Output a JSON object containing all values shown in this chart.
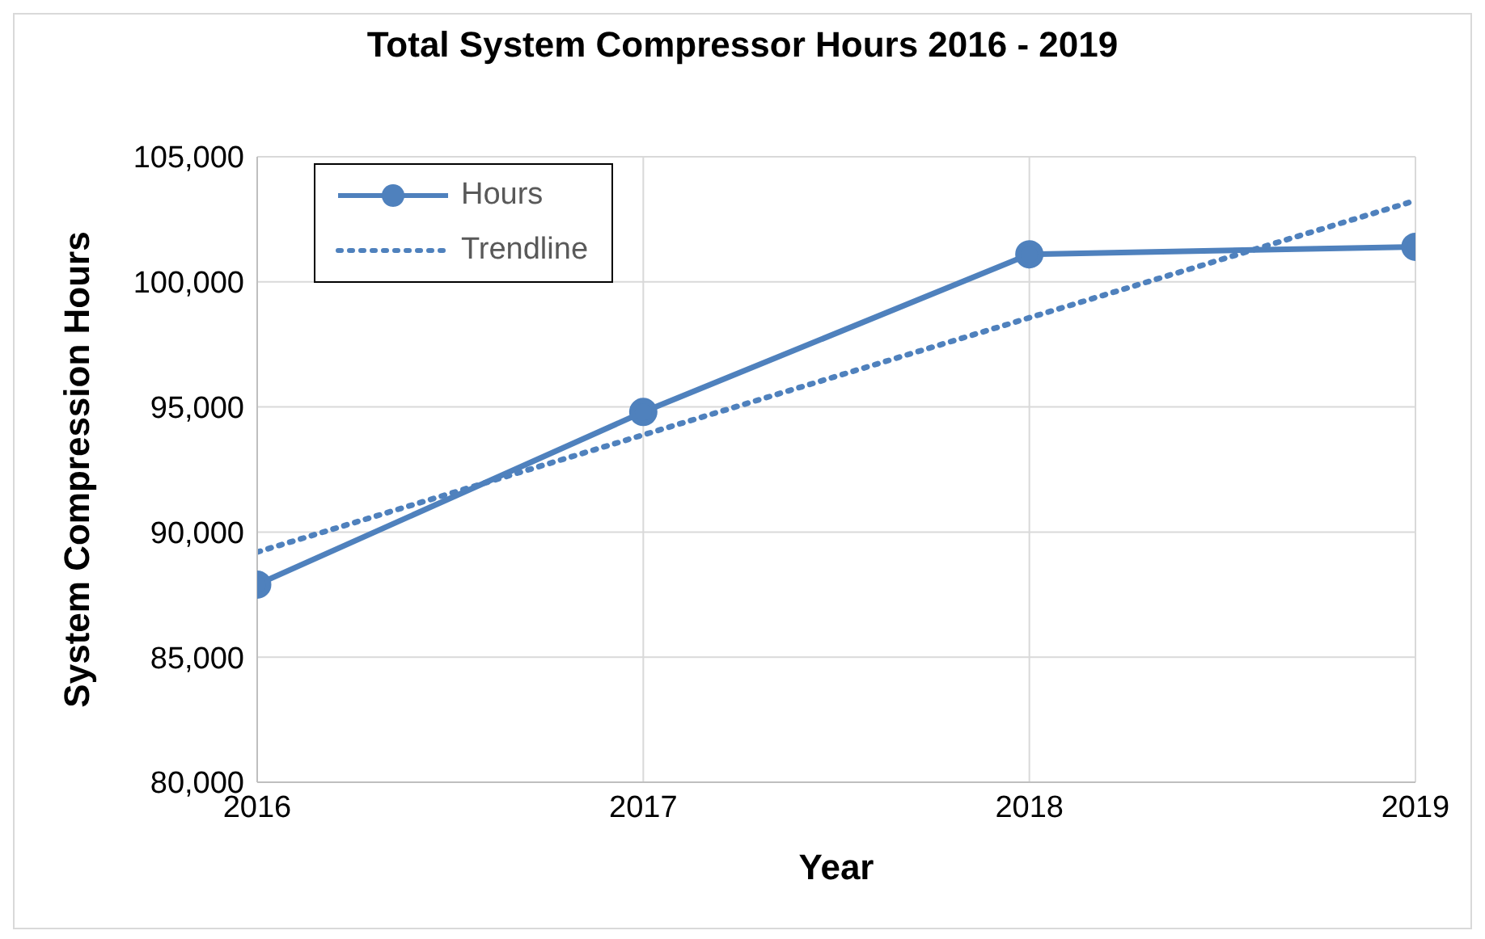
{
  "chart_data": {
    "type": "line",
    "title": "Total System Compressor Hours 2016 - 2019",
    "xlabel": "Year",
    "ylabel": "System Compression Hours",
    "xlim": [
      2016,
      2019
    ],
    "xticks": [
      2016,
      2017,
      2018,
      2019
    ],
    "ylim": [
      80000,
      105000
    ],
    "yticks": [
      {
        "value": 80000,
        "label": "80,000"
      },
      {
        "value": 85000,
        "label": "85,000"
      },
      {
        "value": 90000,
        "label": "90,000"
      },
      {
        "value": 95000,
        "label": "95,000"
      },
      {
        "value": 100000,
        "label": "100,000"
      },
      {
        "value": 105000,
        "label": "105,000"
      }
    ],
    "grid": true,
    "legend": "top left",
    "series": [
      {
        "name": "Hours",
        "color": "#4f81bd",
        "x": [
          2016,
          2017,
          2018,
          2019
        ],
        "values": [
          87900,
          94800,
          101100,
          101400
        ],
        "marker": "circle",
        "line_style": "solid"
      },
      {
        "name": "Trendline",
        "type": "line",
        "color": "#4f81bd",
        "x": [
          2016,
          2019
        ],
        "values": [
          89200,
          103250
        ],
        "marker": "none",
        "line_style": "dotted"
      }
    ]
  }
}
